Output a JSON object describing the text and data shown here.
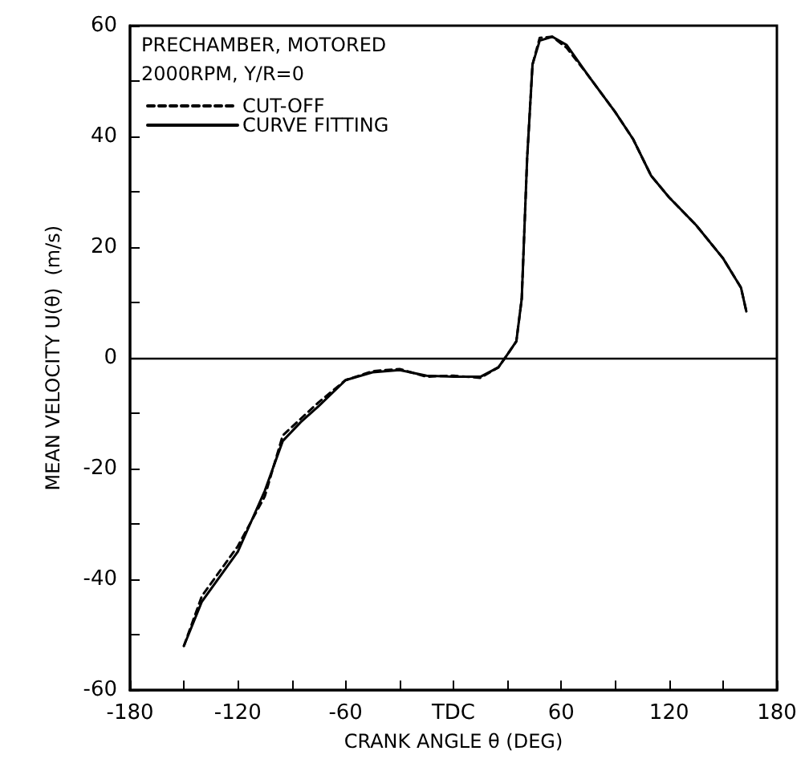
{
  "chart_data": {
    "type": "line",
    "xlabel": "CRANK ANGLE θ (DEG)",
    "ylabel": "MEAN VELOCITY U(θ)  (m/s)",
    "annotations": [
      "PRECHAMBER, MOTORED",
      "2000RPM, Y/R=0"
    ],
    "series": [
      {
        "name": "CUT-OFF",
        "color": "#000000",
        "line_style": "dashed",
        "x": [
          -150,
          -140,
          -120,
          -105,
          -95,
          -85,
          -75,
          -60,
          -45,
          -30,
          -15,
          0,
          15,
          25,
          30,
          35,
          38,
          41,
          44,
          48,
          55,
          63,
          75,
          90,
          100,
          110,
          120,
          135,
          150,
          160,
          163
        ],
        "values": [
          -52,
          -43,
          -34,
          -25,
          -14,
          -11,
          -8,
          -4,
          -2.4,
          -2,
          -3.4,
          -3.2,
          -3.6,
          -1.7,
          0.6,
          3,
          10.7,
          36,
          53,
          57.8,
          58,
          56,
          51,
          44.4,
          39.5,
          32.9,
          29,
          24,
          18,
          12.7,
          8.4
        ]
      },
      {
        "name": "CURVE FITTING",
        "color": "#000000",
        "line_style": "solid",
        "x": [
          -150,
          -140,
          -120,
          -105,
          -95,
          -85,
          -75,
          -60,
          -45,
          -30,
          -15,
          0,
          15,
          25,
          30,
          35,
          38,
          41,
          44,
          48,
          55,
          63,
          75,
          90,
          100,
          110,
          120,
          135,
          150,
          160,
          163
        ],
        "values": [
          -52,
          -44,
          -35,
          -24,
          -15,
          -11.6,
          -8.7,
          -4,
          -2.6,
          -2.2,
          -3.2,
          -3.4,
          -3.4,
          -1.7,
          0.6,
          3,
          10.7,
          36,
          53,
          57.3,
          58,
          56.5,
          51,
          44.4,
          39.5,
          32.9,
          29,
          24,
          18,
          12.7,
          8.4
        ]
      }
    ],
    "xlim": [
      -180,
      180
    ],
    "xticks": [
      -180,
      {
        "value": -150,
        "label": null
      },
      -120,
      {
        "value": -90,
        "label": null
      },
      -60,
      {
        "value": -30,
        "label": null
      },
      {
        "value": 0,
        "label": "TDC"
      },
      {
        "value": 30,
        "label": null
      },
      60,
      {
        "value": 90,
        "label": null
      },
      120,
      {
        "value": 150,
        "label": null
      },
      180
    ],
    "ylim": [
      -60,
      60
    ],
    "yticks": [
      -60,
      {
        "value": -50,
        "label": null
      },
      -40,
      {
        "value": -30,
        "label": null
      },
      -20,
      {
        "value": -10,
        "label": null
      },
      0,
      {
        "value": 10,
        "label": null
      },
      20,
      {
        "value": 30,
        "label": null
      },
      40,
      {
        "value": 50,
        "label": null
      },
      60
    ],
    "ref_lines": [
      {
        "axis": "y",
        "value": 0,
        "color": "#000000"
      }
    ],
    "legend": "top left",
    "marker": "none",
    "grid": false
  }
}
